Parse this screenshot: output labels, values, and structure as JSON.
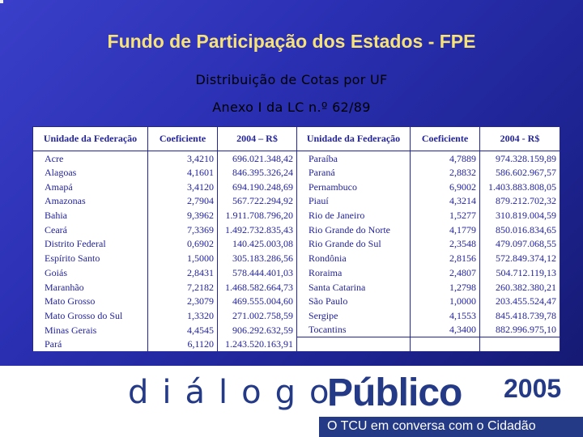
{
  "slide": {
    "title": "Fundo de Participação dos Estados - FPE",
    "subtitle": "Distribuição de Cotas por UF",
    "subtitle2": "Anexo I da LC n.º 62/89"
  },
  "table": {
    "headers": [
      "Unidade da Federação",
      "Coeficiente",
      "2004 – R$",
      "Unidade da Federação",
      "Coeficiente",
      "2004 - R$"
    ],
    "left_rows": [
      [
        "Acre",
        "3,4210",
        "696.021.348,42"
      ],
      [
        "Alagoas",
        "4,1601",
        "846.395.326,24"
      ],
      [
        "Amapá",
        "3,4120",
        "694.190.248,69"
      ],
      [
        "Amazonas",
        "2,7904",
        "567.722.294,92"
      ],
      [
        "Bahia",
        "9,3962",
        "1.911.708.796,20"
      ],
      [
        "Ceará",
        "7,3369",
        "1.492.732.835,43"
      ],
      [
        "Distrito Federal",
        "0,6902",
        "140.425.003,08"
      ],
      [
        "Espírito Santo",
        "1,5000",
        "305.183.286,56"
      ],
      [
        "Goiás",
        "2,8431",
        "578.444.401,03"
      ],
      [
        "Maranhão",
        "7,2182",
        "1.468.582.664,73"
      ],
      [
        "Mato Grosso",
        "2,3079",
        "469.555.004,60"
      ],
      [
        "Mato Grosso do Sul",
        "1,3320",
        "271.002.758,59"
      ],
      [
        "Minas Gerais",
        "4,4545",
        "906.292.632,59"
      ],
      [
        "Pará",
        "6,1120",
        "1.243.520.163,91"
      ]
    ],
    "right_rows": [
      [
        "Paraíba",
        "4,7889",
        "974.328.159,89"
      ],
      [
        "Paraná",
        "2,8832",
        "586.602.967,57"
      ],
      [
        "Pernambuco",
        "6,9002",
        "1.403.883.808,05"
      ],
      [
        "Piauí",
        "4,3214",
        "879.212.702,32"
      ],
      [
        "Rio de Janeiro",
        "1,5277",
        "310.819.004,59"
      ],
      [
        "Rio Grande do Norte",
        "4,1779",
        "850.016.834,65"
      ],
      [
        "Rio Grande do Sul",
        "2,3548",
        "479.097.068,55"
      ],
      [
        "Rondônia",
        "2,8156",
        "572.849.374,12"
      ],
      [
        "Roraima",
        "2,4807",
        "504.712.119,13"
      ],
      [
        "Santa Catarina",
        "1,2798",
        "260.382.380,21"
      ],
      [
        "São Paulo",
        "1,0000",
        "203.455.524,47"
      ],
      [
        "Sergipe",
        "4,1553",
        "845.418.739,78"
      ],
      [
        "Tocantins",
        "4,3400",
        "882.996.975,10"
      ]
    ]
  },
  "footer": {
    "dialogo": "diálogo",
    "publico": "Público",
    "year": "2005",
    "tagline": "O TCU em conversa com o Cidadão"
  },
  "colors": {
    "background": "#2a2fb2",
    "title": "#f6e27a",
    "table_text": "#23239a",
    "logo": "#243a86"
  }
}
